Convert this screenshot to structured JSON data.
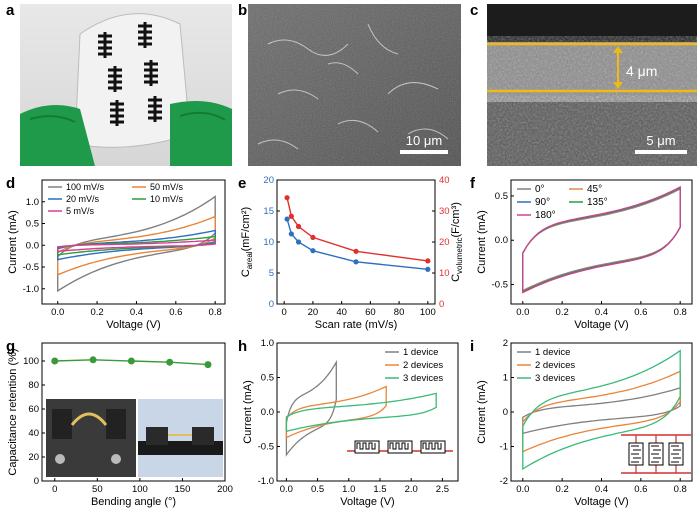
{
  "labels": {
    "a": "a",
    "b": "b",
    "c": "c",
    "d": "d",
    "e": "e",
    "f": "f",
    "g": "g",
    "h": "h",
    "i": "i"
  },
  "photos": {
    "b_scale": "10 μm",
    "c_scale": "5 μm",
    "c_thickness": "4 μm"
  },
  "chart_data": [
    {
      "id": "d",
      "type": "line",
      "title": "",
      "xlabel": "Voltage (V)",
      "ylabel": "Current (mA)",
      "xlim": [
        -0.08,
        0.85
      ],
      "ylim": [
        -1.35,
        1.5
      ],
      "xticks": [
        0.0,
        0.2,
        0.4,
        0.6,
        0.8
      ],
      "xtick_labels": [
        "0.0",
        "0.2",
        "0.4",
        "0.6",
        "0.8"
      ],
      "yticks": [
        -1.0,
        -0.5,
        0.0,
        0.5,
        1.0
      ],
      "ytick_labels": [
        "-1.0",
        "-0.5",
        "0.0",
        "0.5",
        "1.0"
      ],
      "series": [
        {
          "name": "100 mV/s",
          "color": "#808080",
          "x": [
            0,
            0.8
          ],
          "upper_end": 1.12,
          "lower_start": -1.05,
          "plateau": 0.35
        },
        {
          "name": "50 mV/s",
          "color": "#e8853a",
          "x": [
            0,
            0.8
          ],
          "upper_end": 0.66,
          "lower_start": -0.68,
          "plateau": 0.22
        },
        {
          "name": "20 mV/s",
          "color": "#2f6fbf",
          "x": [
            0,
            0.8
          ],
          "upper_end": 0.34,
          "lower_start": -0.33,
          "plateau": 0.11
        },
        {
          "name": "10 mV/s",
          "color": "#2e9e3a",
          "x": [
            0,
            0.8
          ],
          "upper_end": 0.2,
          "lower_start": -0.22,
          "plateau": 0.07
        },
        {
          "name": "5 mV/s",
          "color": "#d63e96",
          "x": [
            0,
            0.8
          ],
          "upper_end": 0.12,
          "lower_start": -0.14,
          "plateau": 0.04
        }
      ]
    },
    {
      "id": "e",
      "type": "line",
      "title": "",
      "xlabel": "Scan rate (mV/s)",
      "ylabel": "C_areal (mF/cm²)",
      "ylabel_main": "C",
      "ylabel_sub": "areal",
      "ylabel_tail": "(mF/cm²)",
      "ylabel_right": "C_volumetric (F/cm³)",
      "ylabel_right_main": "C",
      "ylabel_right_sub": "volumetric",
      "ylabel_right_tail": "(F/cm³)",
      "xlim": [
        -5,
        105
      ],
      "ylim": [
        0,
        20
      ],
      "ylim_right": [
        0,
        40
      ],
      "xticks": [
        0,
        20,
        40,
        60,
        80,
        100
      ],
      "xtick_labels": [
        "0",
        "20",
        "40",
        "60",
        "80",
        "100"
      ],
      "yticks": [
        0,
        5,
        10,
        15,
        20
      ],
      "ytick_labels": [
        "0",
        "5",
        "10",
        "15",
        "20"
      ],
      "yticks_right": [
        0,
        10,
        20,
        30,
        40
      ],
      "ytick_right_labels": [
        "0",
        "10",
        "20",
        "30",
        "40"
      ],
      "x": [
        2,
        5,
        10,
        20,
        50,
        100
      ],
      "series": [
        {
          "name": "C_areal",
          "color": "#2f6fbf",
          "axis": "left",
          "values": [
            13.7,
            11.3,
            10.0,
            8.6,
            6.8,
            5.6
          ]
        },
        {
          "name": "C_volumetric",
          "color": "#e0302c",
          "axis": "right",
          "values": [
            34.3,
            28.3,
            25.0,
            21.5,
            17.0,
            13.9
          ]
        }
      ]
    },
    {
      "id": "f",
      "type": "line",
      "title": "",
      "xlabel": "Voltage (V)",
      "ylabel": "Current (mA)",
      "xlim": [
        -0.06,
        0.86
      ],
      "ylim": [
        -0.72,
        0.68
      ],
      "xticks": [
        0.0,
        0.2,
        0.4,
        0.6,
        0.8
      ],
      "xtick_labels": [
        "0.0",
        "0.2",
        "0.4",
        "0.6",
        "0.8"
      ],
      "yticks": [
        -0.5,
        0.0,
        0.5
      ],
      "ytick_labels": [
        "-0.5",
        "0.0",
        "0.5"
      ],
      "series": [
        {
          "name": "0°",
          "color": "#808080"
        },
        {
          "name": "45°",
          "color": "#e8853a"
        },
        {
          "name": "90°",
          "color": "#2f6fbf"
        },
        {
          "name": "135°",
          "color": "#2e9e3a"
        },
        {
          "name": "180°",
          "color": "#d63e96"
        }
      ],
      "upper_end": 0.59,
      "lower_start": -0.58,
      "plateau": 0.33
    },
    {
      "id": "g",
      "type": "scatter",
      "title": "",
      "xlabel": "Bending angle (°)",
      "ylabel": "Capacitance retention (%)",
      "xlim": [
        -15,
        200
      ],
      "ylim": [
        0,
        115
      ],
      "xticks": [
        0,
        50,
        100,
        150,
        200
      ],
      "xtick_labels": [
        "0",
        "50",
        "100",
        "150",
        "200"
      ],
      "yticks": [
        0,
        20,
        40,
        60,
        80,
        100
      ],
      "ytick_labels": [
        "0",
        "20",
        "40",
        "60",
        "80",
        "100"
      ],
      "x": [
        0,
        45,
        90,
        135,
        180
      ],
      "values": [
        100,
        101,
        100,
        99,
        97
      ],
      "color": "#3a9a3a"
    },
    {
      "id": "h",
      "type": "line",
      "title": "",
      "xlabel": "Voltage (V)",
      "ylabel": "Current (mA)",
      "xlim": [
        -0.15,
        2.75
      ],
      "ylim": [
        -1.0,
        1.0
      ],
      "xticks": [
        0.0,
        0.5,
        1.0,
        1.5,
        2.0,
        2.5
      ],
      "xtick_labels": [
        "0.0",
        "0.5",
        "1.0",
        "1.5",
        "2.0",
        "2.5"
      ],
      "yticks": [
        -1.0,
        -0.5,
        0.0,
        0.5,
        1.0
      ],
      "ytick_labels": [
        "-1.0",
        "-0.5",
        "0.0",
        "0.5",
        "1.0"
      ],
      "series": [
        {
          "name": "1 device",
          "color": "#808080",
          "vmax": 0.8,
          "upper_end": 0.72,
          "lower_start": -0.62,
          "plateau": 0.35
        },
        {
          "name": "2 devices",
          "color": "#e8853a",
          "vmax": 1.6,
          "upper_end": 0.37,
          "lower_start": -0.37,
          "plateau": 0.17
        },
        {
          "name": "3 devices",
          "color": "#3aba7a",
          "vmax": 2.4,
          "upper_end": 0.27,
          "lower_start": -0.28,
          "plateau": 0.12
        }
      ]
    },
    {
      "id": "i",
      "type": "line",
      "title": "",
      "xlabel": "Voltage (V)",
      "ylabel": "Current (mA)",
      "xlim": [
        -0.06,
        0.86
      ],
      "ylim": [
        -2.0,
        2.0
      ],
      "xticks": [
        0.0,
        0.2,
        0.4,
        0.6,
        0.8
      ],
      "xtick_labels": [
        "0.0",
        "0.2",
        "0.4",
        "0.6",
        "0.8"
      ],
      "yticks": [
        -2,
        -1,
        0,
        1,
        2
      ],
      "ytick_labels": [
        "-2",
        "-1",
        "0",
        "1",
        "2"
      ],
      "series": [
        {
          "name": "1 device",
          "color": "#808080",
          "upper_end": 0.7,
          "lower_start": -0.62,
          "plateau": 0.28
        },
        {
          "name": "2 devices",
          "color": "#e8853a",
          "upper_end": 1.18,
          "lower_start": -1.15,
          "plateau": 0.55
        },
        {
          "name": "3 devices",
          "color": "#3aba7a",
          "upper_end": 1.78,
          "lower_start": -1.65,
          "plateau": 0.85
        }
      ]
    }
  ]
}
